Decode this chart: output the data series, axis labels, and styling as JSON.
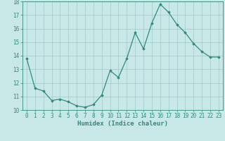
{
  "x": [
    0,
    1,
    2,
    3,
    4,
    5,
    6,
    7,
    8,
    9,
    10,
    11,
    12,
    13,
    14,
    15,
    16,
    17,
    18,
    19,
    20,
    21,
    22,
    23
  ],
  "y": [
    13.8,
    11.6,
    11.4,
    10.7,
    10.8,
    10.6,
    10.3,
    10.2,
    10.4,
    11.1,
    12.9,
    12.4,
    13.8,
    15.7,
    14.5,
    16.4,
    17.8,
    17.2,
    16.3,
    15.7,
    14.9,
    14.3,
    13.9,
    13.9
  ],
  "line_color": "#2e8b7a",
  "marker": "D",
  "marker_size": 1.8,
  "bg_color": "#c8e8e8",
  "grid_color": "#a0c8c8",
  "xlabel": "Humidex (Indice chaleur)",
  "ylim": [
    10,
    18
  ],
  "xlim_min": -0.5,
  "xlim_max": 23.5,
  "yticks": [
    10,
    11,
    12,
    13,
    14,
    15,
    16,
    17,
    18
  ],
  "xticks": [
    0,
    1,
    2,
    3,
    4,
    5,
    6,
    7,
    8,
    9,
    10,
    11,
    12,
    13,
    14,
    15,
    16,
    17,
    18,
    19,
    20,
    21,
    22,
    23
  ],
  "tick_color": "#2e8b7a",
  "xlabel_fontsize": 6.5,
  "tick_fontsize": 5.5,
  "linewidth": 0.9
}
